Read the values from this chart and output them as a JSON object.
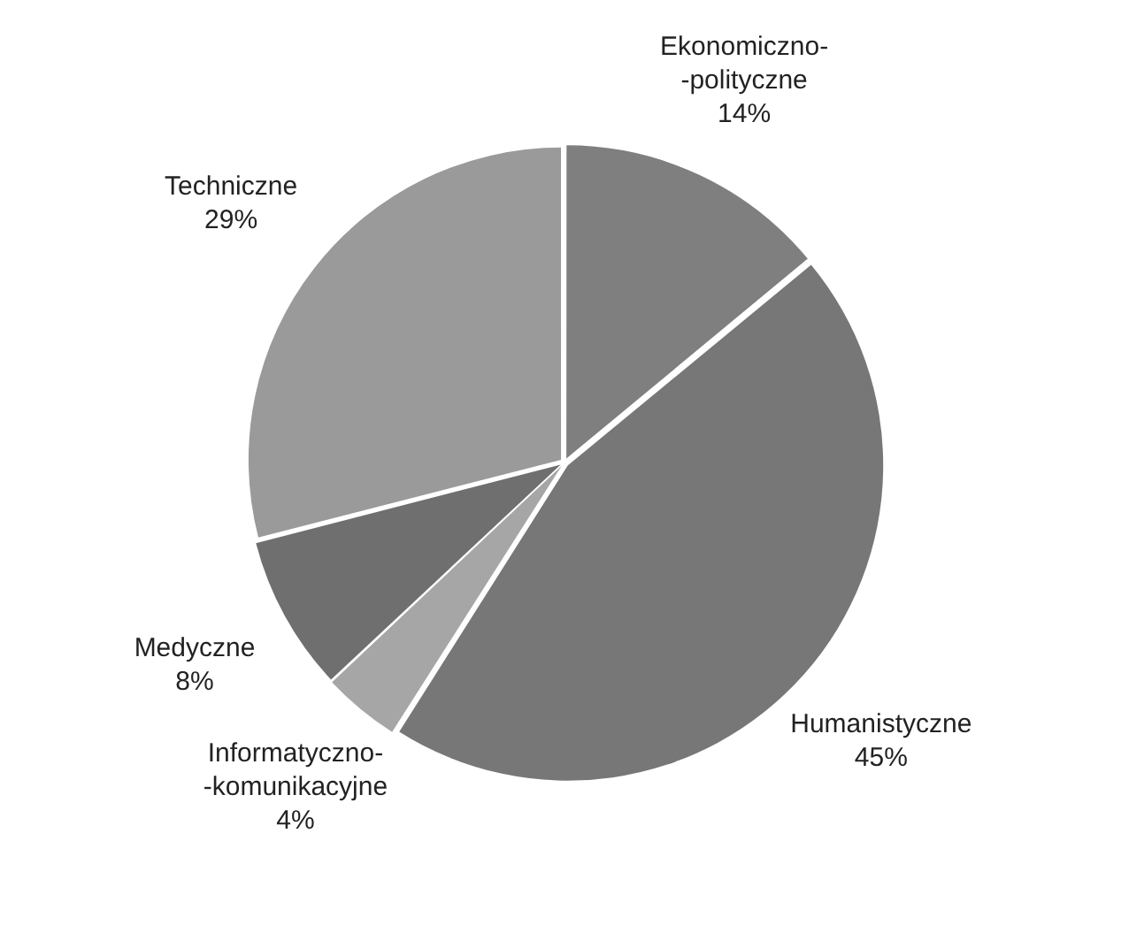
{
  "chart_data": {
    "type": "pie",
    "categories": [
      "Ekonomiczno-\n-polityczne",
      "Humanistyczne",
      "Informatyczno-\n-komunikacyjne",
      "Medyczne",
      "Techniczne"
    ],
    "values": [
      14,
      45,
      4,
      8,
      29
    ],
    "value_labels": [
      "14%",
      "45%",
      "4%",
      "8%",
      "29%"
    ],
    "colors": [
      "#7f7f7f",
      "#777777",
      "#a6a6a6",
      "#6f6f6f",
      "#9a9a9a"
    ],
    "legend": false
  }
}
